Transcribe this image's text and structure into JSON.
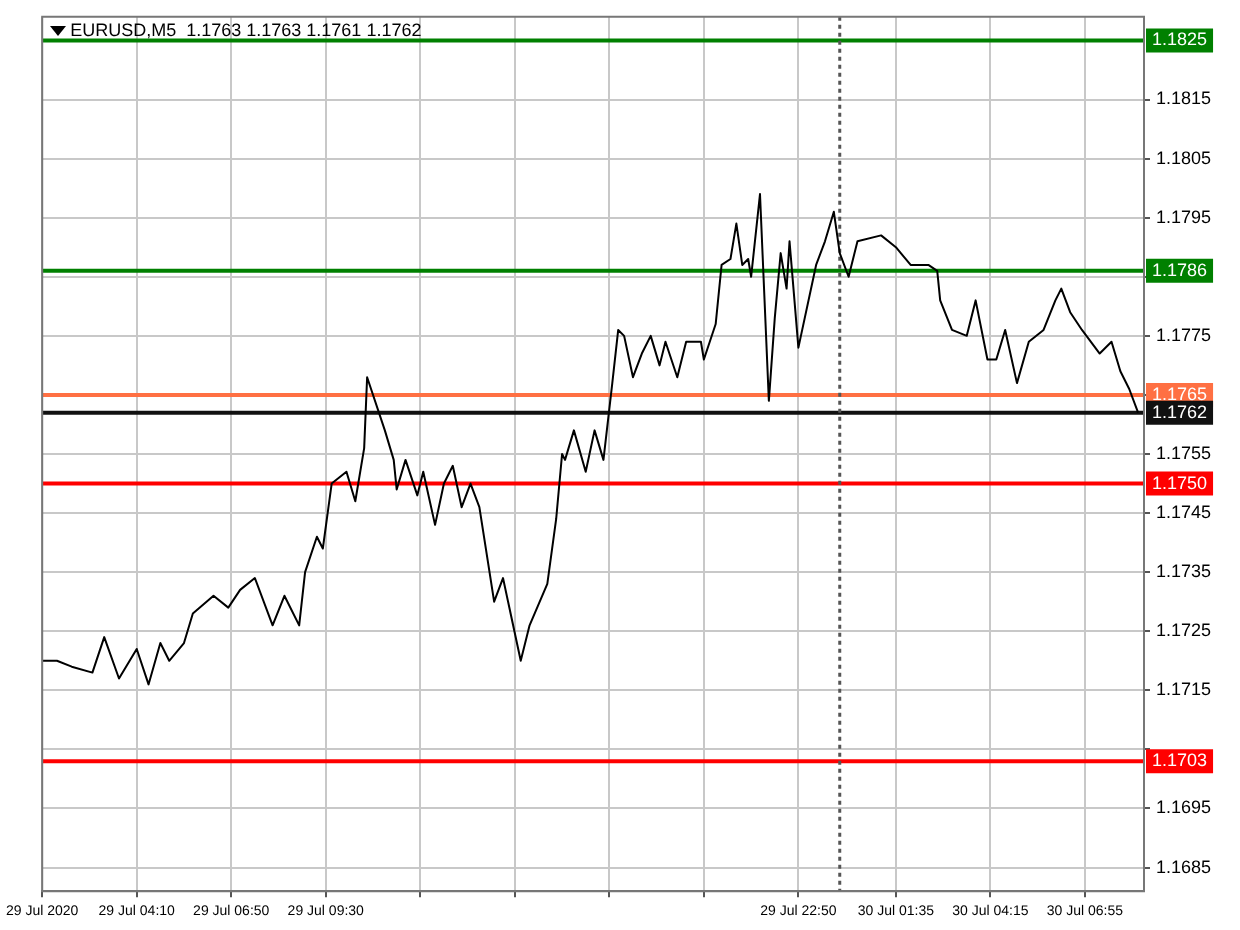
{
  "chart_data": {
    "type": "line",
    "title": "EURUSD,M5  1.1763 1.1763 1.1761 1.1762",
    "series": [
      {
        "color": "#000000",
        "x": [
          "2020-07-29T01:30",
          "2020-07-29T01:55",
          "2020-07-29T02:20",
          "2020-07-29T02:55",
          "2020-07-29T03:15",
          "2020-07-29T03:40",
          "2020-07-29T04:10",
          "2020-07-29T04:30",
          "2020-07-29T04:50",
          "2020-07-29T05:05",
          "2020-07-29T05:30",
          "2020-07-29T05:45",
          "2020-07-29T06:20",
          "2020-07-29T06:45",
          "2020-07-29T07:05",
          "2020-07-29T07:30",
          "2020-07-29T08:00",
          "2020-07-29T08:20",
          "2020-07-29T08:45",
          "2020-07-29T08:55",
          "2020-07-29T09:15",
          "2020-07-29T09:25",
          "2020-07-29T09:40",
          "2020-07-29T10:05",
          "2020-07-29T10:20",
          "2020-07-29T10:35",
          "2020-07-29T10:40",
          "2020-07-29T11:10",
          "2020-07-29T11:25",
          "2020-07-29T11:30",
          "2020-07-29T11:45",
          "2020-07-29T12:05",
          "2020-07-29T12:15",
          "2020-07-29T12:35",
          "2020-07-29T12:50",
          "2020-07-29T13:05",
          "2020-07-29T13:20",
          "2020-07-29T13:35",
          "2020-07-29T13:50",
          "2020-07-29T14:15",
          "2020-07-29T14:30",
          "2020-07-29T15:00",
          "2020-07-29T15:15",
          "2020-07-29T15:45",
          "2020-07-29T16:00",
          "2020-07-29T16:10",
          "2020-07-29T16:15",
          "2020-07-29T16:30",
          "2020-07-29T16:50",
          "2020-07-29T17:05",
          "2020-07-29T17:20",
          "2020-07-29T17:35",
          "2020-07-29T17:45",
          "2020-07-29T17:55",
          "2020-07-29T18:10",
          "2020-07-29T18:25",
          "2020-07-29T18:40",
          "2020-07-29T18:55",
          "2020-07-29T19:05",
          "2020-07-29T19:25",
          "2020-07-29T19:40",
          "2020-07-29T20:05",
          "2020-07-29T20:10",
          "2020-07-29T20:30",
          "2020-07-29T20:40",
          "2020-07-29T20:55",
          "2020-07-29T21:05",
          "2020-07-29T21:15",
          "2020-07-29T21:25",
          "2020-07-29T21:30",
          "2020-07-29T21:45",
          "2020-07-29T22:00",
          "2020-07-29T22:10",
          "2020-07-29T22:20",
          "2020-07-29T22:30",
          "2020-07-29T22:35",
          "2020-07-29T22:50",
          "2020-07-29T23:20",
          "2020-07-29T23:35",
          "2020-07-29T23:50",
          "2020-07-30T00:00",
          "2020-07-30T00:15",
          "2020-07-30T00:30",
          "2020-07-30T01:10",
          "2020-07-30T01:35",
          "2020-07-30T02:00",
          "2020-07-30T02:30",
          "2020-07-30T02:45",
          "2020-07-30T02:50",
          "2020-07-30T03:10",
          "2020-07-30T03:35",
          "2020-07-30T03:50",
          "2020-07-30T04:10",
          "2020-07-30T04:25",
          "2020-07-30T04:40",
          "2020-07-30T05:00",
          "2020-07-30T05:20",
          "2020-07-30T05:45",
          "2020-07-30T06:05",
          "2020-07-30T06:15",
          "2020-07-30T06:30",
          "2020-07-30T06:50",
          "2020-07-30T07:20",
          "2020-07-30T07:40",
          "2020-07-30T07:55",
          "2020-07-30T08:10",
          "2020-07-30T08:25"
        ],
        "values": [
          1.172,
          1.172,
          1.1719,
          1.1718,
          1.1724,
          1.1717,
          1.1722,
          1.1716,
          1.1723,
          1.172,
          1.1723,
          1.1728,
          1.1731,
          1.1729,
          1.1732,
          1.1734,
          1.1726,
          1.1731,
          1.1726,
          1.1735,
          1.1741,
          1.1739,
          1.175,
          1.1752,
          1.1747,
          1.1756,
          1.1768,
          1.1759,
          1.1754,
          1.1749,
          1.1754,
          1.1748,
          1.1752,
          1.1743,
          1.175,
          1.1753,
          1.1746,
          1.175,
          1.1746,
          1.173,
          1.1734,
          1.172,
          1.1726,
          1.1733,
          1.1744,
          1.1755,
          1.1754,
          1.1759,
          1.1752,
          1.1759,
          1.1754,
          1.1767,
          1.1776,
          1.1775,
          1.1768,
          1.1772,
          1.1775,
          1.177,
          1.1774,
          1.1768,
          1.1774,
          1.1774,
          1.1771,
          1.1777,
          1.1787,
          1.1788,
          1.1794,
          1.1787,
          1.1788,
          1.1785,
          1.1799,
          1.1764,
          1.1778,
          1.1789,
          1.1783,
          1.1791,
          1.1773,
          1.1787,
          1.1791,
          1.1796,
          1.1789,
          1.1785,
          1.1791,
          1.1792,
          1.179,
          1.1787,
          1.1787,
          1.1786,
          1.1781,
          1.1776,
          1.1775,
          1.1781,
          1.1771,
          1.1771,
          1.1776,
          1.1767,
          1.1774,
          1.1776,
          1.1781,
          1.1783,
          1.1779,
          1.1776,
          1.1772,
          1.1774,
          1.1769,
          1.1766,
          1.1762
        ]
      }
    ],
    "xlim": [
      "2020-07-29T01:30",
      "2020-07-30T08:35"
    ],
    "xticks": [
      {
        "value": "2020-07-29T01:30",
        "label": "29 Jul 2020"
      },
      {
        "value": "2020-07-29T04:10",
        "label": "29 Jul 04:10"
      },
      {
        "value": "2020-07-29T06:50",
        "label": "29 Jul 06:50"
      },
      {
        "value": "2020-07-29T09:30",
        "label": "29 Jul 09:30"
      },
      {
        "value": "2020-07-29T12:10",
        "label": null
      },
      {
        "value": "2020-07-29T14:50",
        "label": null
      },
      {
        "value": "2020-07-29T17:30",
        "label": null
      },
      {
        "value": "2020-07-29T20:10",
        "label": null
      },
      {
        "value": "2020-07-29T22:50",
        "label": "29 Jul 22:50"
      },
      {
        "value": "2020-07-30T01:35",
        "label": "30 Jul 01:35"
      },
      {
        "value": "2020-07-30T04:15",
        "label": "30 Jul 04:15"
      },
      {
        "value": "2020-07-30T06:55",
        "label": "30 Jul 06:55"
      }
    ],
    "ylim": [
      1.1681,
      1.1829
    ],
    "yticks": [
      1.1685,
      1.1695,
      {
        "value": 1.1705,
        "label": null
      },
      1.1715,
      1.1725,
      1.1735,
      1.1745,
      1.1755,
      {
        "value": 1.1765,
        "label": null
      },
      1.1775,
      {
        "value": 1.1785,
        "label": null
      },
      1.1795,
      1.1805,
      1.1815
    ],
    "ref_lines": [
      {
        "axis": "y",
        "value": 1.1825,
        "label": "1.1825",
        "color": "#008000"
      },
      {
        "axis": "y",
        "value": 1.1786,
        "label": "1.1786",
        "color": "#008000"
      },
      {
        "axis": "y",
        "value": 1.1765,
        "label": "1.1765",
        "color": "#ff7043"
      },
      {
        "axis": "y",
        "value": 1.1762,
        "label": "1.1762",
        "color": "#111111"
      },
      {
        "axis": "y",
        "value": 1.175,
        "label": "1.1750",
        "color": "#ff0000"
      },
      {
        "axis": "y",
        "value": 1.1703,
        "label": "1.1703",
        "color": "#ff0000"
      },
      {
        "axis": "x",
        "value": "2020-07-30T00:00",
        "color": "#555555",
        "line_style": "dotted"
      }
    ],
    "grid": true,
    "legend": false,
    "marker": "none",
    "line_style": "solid"
  }
}
